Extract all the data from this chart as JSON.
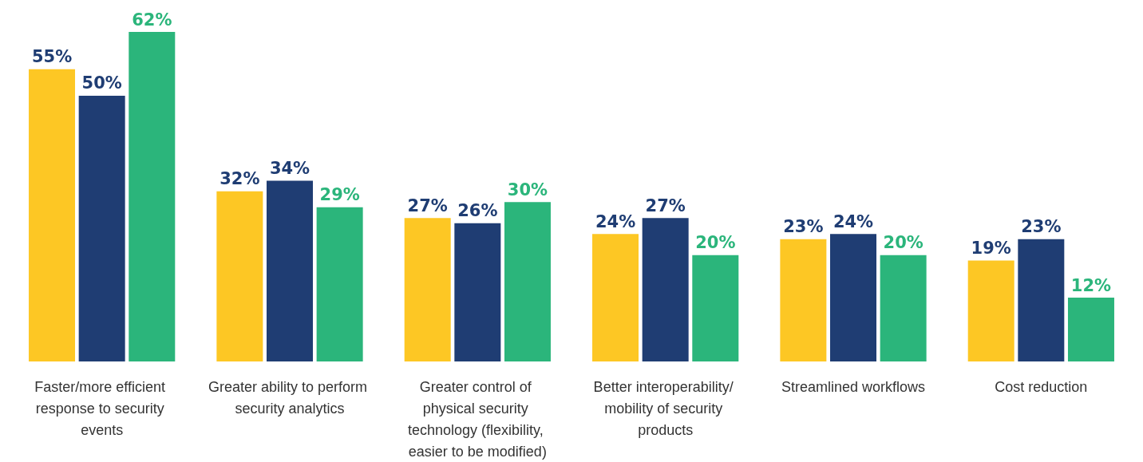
{
  "chart_data": {
    "type": "bar",
    "categories": [
      "Faster/more efficient response to security events",
      "Greater ability to perform security analytics",
      "Greater control of physical security technology (flexibility, easier to be modified)",
      "Better interoperability/ mobility of security products",
      "Streamlined workflows",
      "Cost reduction"
    ],
    "series": [
      {
        "color": "#fdc724",
        "values": [
          55,
          32,
          27,
          24,
          23,
          19
        ],
        "value_labels": [
          "55%",
          "32%",
          "27%",
          "24%",
          "23%",
          "19%"
        ]
      },
      {
        "color": "#1f3d73",
        "values": [
          50,
          34,
          26,
          27,
          24,
          23
        ],
        "value_labels": [
          "50%",
          "34%",
          "26%",
          "27%",
          "24%",
          "23%"
        ]
      },
      {
        "color": "#2bb57b",
        "values": [
          62,
          29,
          30,
          20,
          20,
          12
        ],
        "value_labels": [
          "62%",
          "29%",
          "30%",
          "20%",
          "20%",
          "12%"
        ]
      }
    ],
    "stacked": false
  }
}
